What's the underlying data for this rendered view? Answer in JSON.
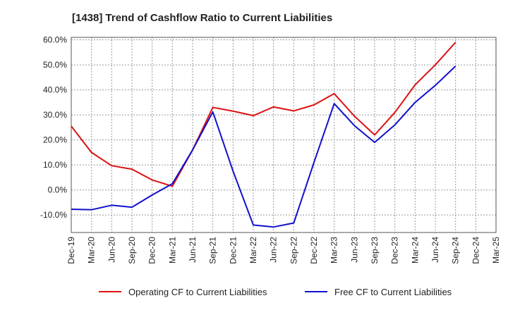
{
  "chart_data": {
    "type": "line",
    "title": "[1438]  Trend of Cashflow Ratio to Current Liabilities",
    "xlabel": "",
    "ylabel": "",
    "x": [
      "Dec-19",
      "Mar-20",
      "Jun-20",
      "Sep-20",
      "Dec-20",
      "Mar-21",
      "Jun-21",
      "Sep-21",
      "Dec-21",
      "Mar-22",
      "Jun-22",
      "Sep-22",
      "Dec-22",
      "Mar-23",
      "Jun-23",
      "Sep-23",
      "Dec-23",
      "Mar-24",
      "Jun-24",
      "Sep-24",
      "Dec-24",
      "Mar-25"
    ],
    "ylim": [
      -17,
      61
    ],
    "yticks": [
      -10,
      0,
      10,
      20,
      30,
      40,
      50,
      60
    ],
    "ytick_labels": [
      "-10.0%",
      "0.0%",
      "10.0%",
      "20.0%",
      "30.0%",
      "40.0%",
      "50.0%",
      "60.0%"
    ],
    "grid": true,
    "legend_position": "bottom",
    "series": [
      {
        "name": "Operating CF to Current Liabilities",
        "color": "#dd1111",
        "values": [
          25.5,
          15.0,
          9.7,
          8.3,
          4.0,
          1.5,
          16.0,
          33.0,
          31.5,
          29.7,
          33.2,
          31.6,
          34.0,
          38.5,
          29.5,
          22.0,
          31.0,
          42.0,
          50.0,
          59.0,
          null,
          null
        ]
      },
      {
        "name": "Free CF to Current Liabilities",
        "color": "#1111cc",
        "values": [
          -7.7,
          -7.9,
          -6.1,
          -6.9,
          -2.0,
          2.5,
          16.0,
          31.2,
          7.5,
          -14.0,
          -14.8,
          -13.2,
          11.0,
          34.5,
          25.7,
          19.0,
          26.0,
          35.0,
          41.8,
          49.5,
          null,
          null
        ]
      }
    ]
  }
}
